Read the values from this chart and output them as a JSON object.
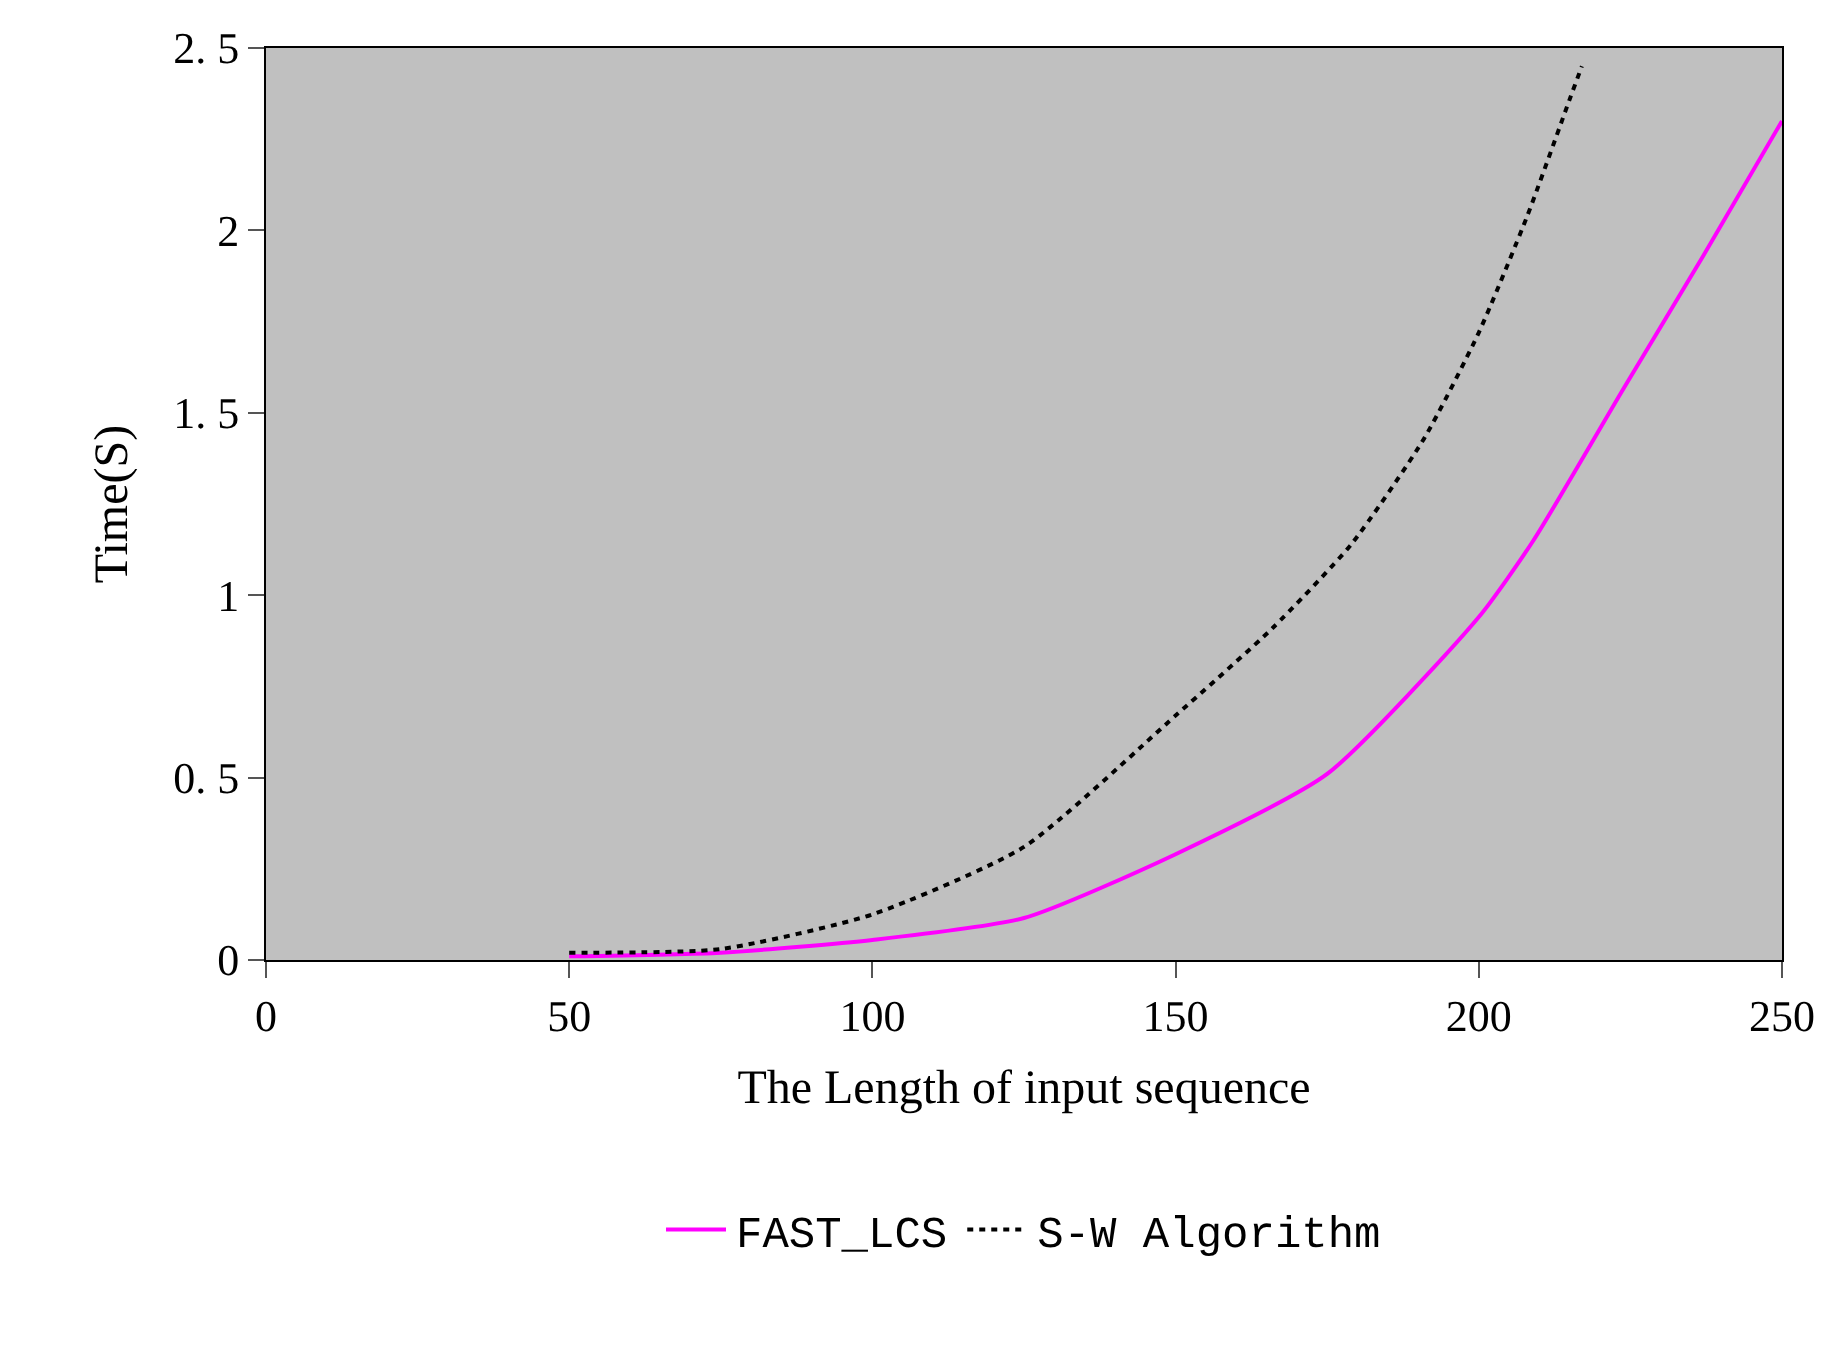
{
  "chart_data": {
    "type": "line",
    "xlabel": "The Length of input sequence",
    "ylabel": "Time(S)",
    "xlim": [
      0,
      250
    ],
    "xticks": [
      0,
      50,
      100,
      150,
      200,
      250
    ],
    "ylim": [
      0,
      2.5
    ],
    "yticks": [
      0,
      {
        "value": 0.5,
        "label": "0. 5"
      },
      1,
      {
        "value": 1.5,
        "label": "1. 5"
      },
      2,
      {
        "value": 2.5,
        "label": "2. 5"
      }
    ],
    "grid": false,
    "legend": "bottom",
    "marker": "none",
    "series": [
      {
        "name": "FAST_LCS",
        "color": "#ff00ff",
        "line_style": "solid",
        "x": [
          50,
          75,
          100,
          125,
          150,
          175,
          200,
          209,
          224,
          237,
          250
        ],
        "values": [
          0.01,
          0.02,
          0.055,
          0.115,
          0.29,
          0.51,
          0.94,
          1.15,
          1.57,
          1.93,
          2.3
        ]
      },
      {
        "name": "S-W Algorithm",
        "color": "#000000",
        "line_style": "dotted",
        "x": [
          50,
          75,
          100,
          125,
          150,
          166,
          179,
          191,
          200,
          208,
          215,
          217
        ],
        "values": [
          0.02,
          0.03,
          0.125,
          0.31,
          0.67,
          0.91,
          1.14,
          1.43,
          1.72,
          2.04,
          2.36,
          2.45
        ]
      }
    ]
  }
}
